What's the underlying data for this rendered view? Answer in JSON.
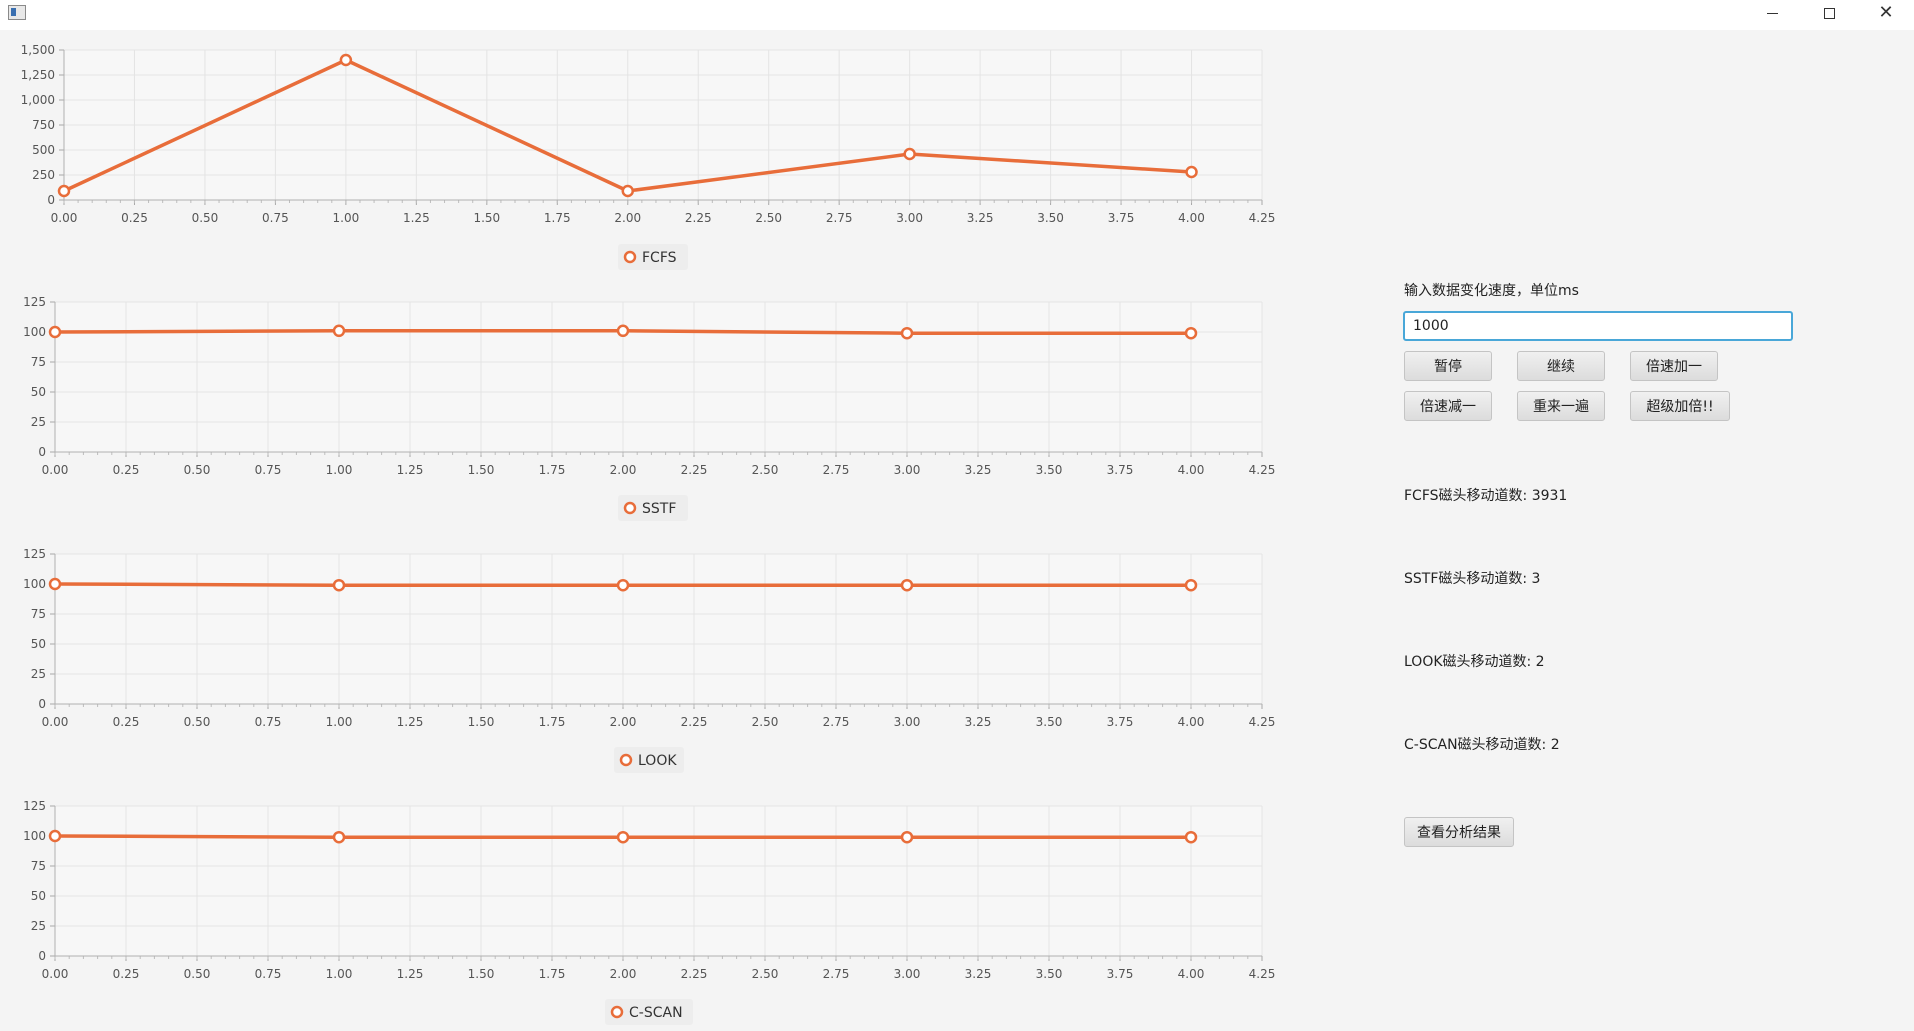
{
  "window": {
    "controls": {
      "minimize_icon": "minimize-icon",
      "maximize_icon": "maximize-icon",
      "close_icon": "close-icon",
      "close_glyph": "✕"
    }
  },
  "controls": {
    "speed_label": "输入数据变化速度，单位ms",
    "speed_value": "1000",
    "buttons": {
      "pause": "暂停",
      "resume": "继续",
      "speed_up": "倍速加一",
      "speed_down": "倍速减一",
      "restart": "重来一遍",
      "super_speed": "超级加倍!!",
      "view_analysis": "查看分析结果"
    }
  },
  "stats": {
    "fcfs": "FCFS磁头移动道数: 3931",
    "sstf": "SSTF磁头移动道数: 3",
    "look": "LOOK磁头移动道数: 2",
    "cscan": "C-SCAN磁头移动道数: 2"
  },
  "chart_data": [
    {
      "type": "line",
      "legend": "FCFS",
      "series": [
        {
          "name": "FCFS",
          "x": [
            0,
            1,
            2,
            3,
            4
          ],
          "values": [
            90,
            1400,
            90,
            460,
            280
          ]
        }
      ],
      "xlim": [
        0,
        4.25
      ],
      "ylim": [
        0,
        1500
      ],
      "xticks": [
        "0.00",
        "0.25",
        "0.50",
        "0.75",
        "1.00",
        "1.25",
        "1.50",
        "1.75",
        "2.00",
        "2.25",
        "2.50",
        "2.75",
        "3.00",
        "3.25",
        "3.50",
        "3.75",
        "4.00",
        "4.25"
      ],
      "yticks": [
        "0",
        "250",
        "500",
        "750",
        "1,000",
        "1,250",
        "1,500"
      ],
      "color": "#e86d3a",
      "grid": true,
      "legend_position": "bottom"
    },
    {
      "type": "line",
      "legend": "SSTF",
      "series": [
        {
          "name": "SSTF",
          "x": [
            0,
            1,
            2,
            3,
            4
          ],
          "values": [
            100,
            101,
            101,
            99,
            99
          ]
        }
      ],
      "xlim": [
        0,
        4.25
      ],
      "ylim": [
        0,
        125
      ],
      "xticks": [
        "0.00",
        "0.25",
        "0.50",
        "0.75",
        "1.00",
        "1.25",
        "1.50",
        "1.75",
        "2.00",
        "2.25",
        "2.50",
        "2.75",
        "3.00",
        "3.25",
        "3.50",
        "3.75",
        "4.00",
        "4.25"
      ],
      "yticks": [
        "0",
        "25",
        "50",
        "75",
        "100",
        "125"
      ],
      "color": "#e86d3a",
      "grid": true,
      "legend_position": "bottom"
    },
    {
      "type": "line",
      "legend": "LOOK",
      "series": [
        {
          "name": "LOOK",
          "x": [
            0,
            1,
            2,
            3,
            4
          ],
          "values": [
            100,
            99,
            99,
            99,
            99
          ]
        }
      ],
      "xlim": [
        0,
        4.25
      ],
      "ylim": [
        0,
        125
      ],
      "xticks": [
        "0.00",
        "0.25",
        "0.50",
        "0.75",
        "1.00",
        "1.25",
        "1.50",
        "1.75",
        "2.00",
        "2.25",
        "2.50",
        "2.75",
        "3.00",
        "3.25",
        "3.50",
        "3.75",
        "4.00",
        "4.25"
      ],
      "yticks": [
        "0",
        "25",
        "50",
        "75",
        "100",
        "125"
      ],
      "color": "#e86d3a",
      "grid": true,
      "legend_position": "bottom"
    },
    {
      "type": "line",
      "legend": "C-SCAN",
      "series": [
        {
          "name": "C-SCAN",
          "x": [
            0,
            1,
            2,
            3,
            4
          ],
          "values": [
            100,
            99,
            99,
            99,
            99
          ]
        }
      ],
      "xlim": [
        0,
        4.25
      ],
      "ylim": [
        0,
        125
      ],
      "xticks": [
        "0.00",
        "0.25",
        "0.50",
        "0.75",
        "1.00",
        "1.25",
        "1.50",
        "1.75",
        "2.00",
        "2.25",
        "2.50",
        "2.75",
        "3.00",
        "3.25",
        "3.50",
        "3.75",
        "4.00",
        "4.25"
      ],
      "yticks": [
        "0",
        "25",
        "50",
        "75",
        "100",
        "125"
      ],
      "color": "#e86d3a",
      "grid": true,
      "legend_position": "bottom"
    }
  ]
}
